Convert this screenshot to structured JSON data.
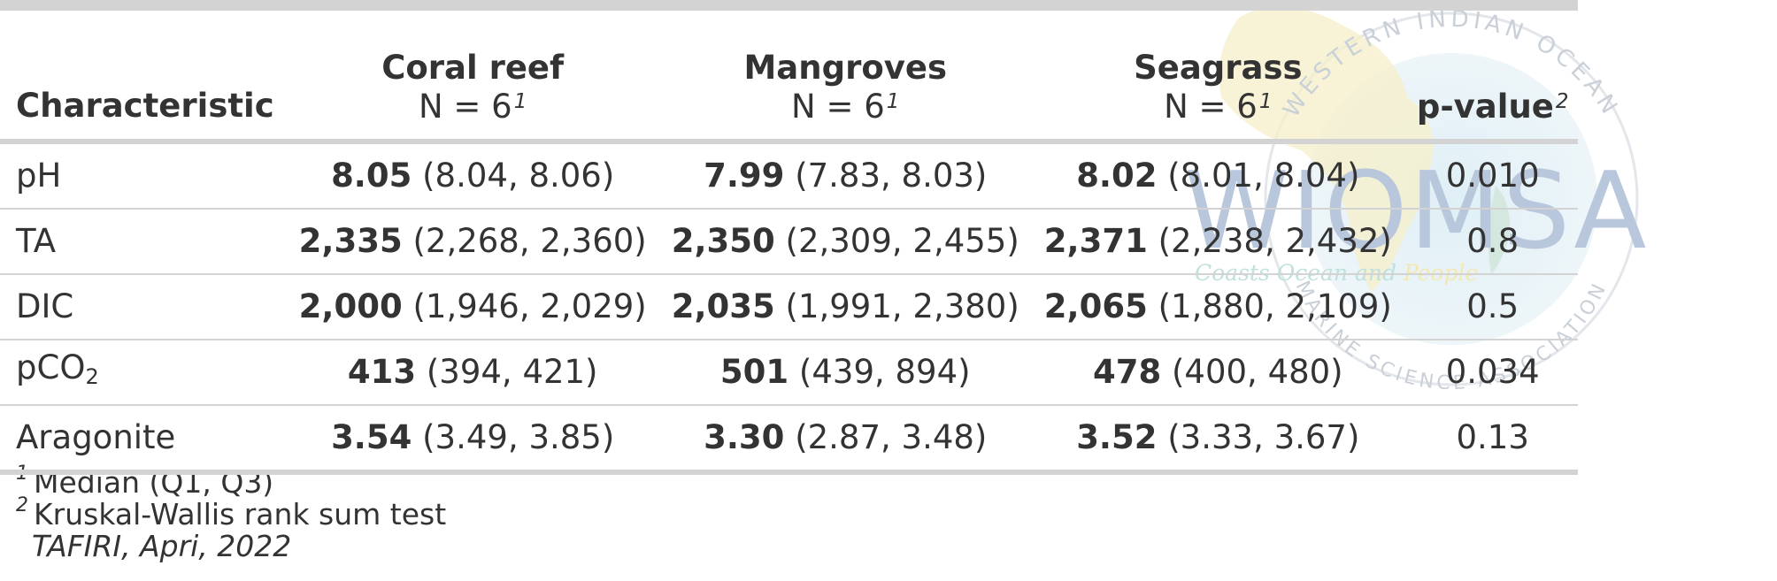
{
  "table": {
    "header": {
      "characteristic": "Characteristic",
      "groups": [
        {
          "name": "Coral reef",
          "n": "N = 6",
          "fn": "1"
        },
        {
          "name": "Mangroves",
          "n": "N = 6",
          "fn": "1"
        },
        {
          "name": "Seagrass",
          "n": "N = 6",
          "fn": "1"
        }
      ],
      "pvalue": "p-value",
      "pvalue_fn": "2"
    },
    "rows": [
      {
        "label": "pH",
        "label_sub": "",
        "cells": [
          {
            "median": "8.05",
            "iqr": "(8.04, 8.06)"
          },
          {
            "median": "7.99",
            "iqr": "(7.83, 8.03)"
          },
          {
            "median": "8.02",
            "iqr": "(8.01, 8.04)"
          }
        ],
        "p": "0.010"
      },
      {
        "label": "TA",
        "label_sub": "",
        "cells": [
          {
            "median": "2,335",
            "iqr": "(2,268, 2,360)"
          },
          {
            "median": "2,350",
            "iqr": "(2,309, 2,455)"
          },
          {
            "median": "2,371",
            "iqr": "(2,238, 2,432)"
          }
        ],
        "p": "0.8"
      },
      {
        "label": "DIC",
        "label_sub": "",
        "cells": [
          {
            "median": "2,000",
            "iqr": "(1,946, 2,029)"
          },
          {
            "median": "2,035",
            "iqr": "(1,991, 2,380)"
          },
          {
            "median": "2,065",
            "iqr": "(1,880, 2,109)"
          }
        ],
        "p": "0.5"
      },
      {
        "label": "pCO",
        "label_sub": "2",
        "cells": [
          {
            "median": "413",
            "iqr": "(394, 421)"
          },
          {
            "median": "501",
            "iqr": "(439, 894)"
          },
          {
            "median": "478",
            "iqr": "(400, 480)"
          }
        ],
        "p": "0.034"
      },
      {
        "label": "Aragonite",
        "label_sub": "",
        "cells": [
          {
            "median": "3.54",
            "iqr": "(3.49, 3.85)"
          },
          {
            "median": "3.30",
            "iqr": "(2.87, 3.48)"
          },
          {
            "median": "3.52",
            "iqr": "(3.33, 3.67)"
          }
        ],
        "p": "0.13"
      }
    ]
  },
  "footnotes": [
    {
      "mark": "1",
      "text": "Median (Q1, Q3)"
    },
    {
      "mark": "2",
      "text": "Kruskal-Wallis rank sum test"
    }
  ],
  "source_note": "TAFIRI, Apri, 2022",
  "watermark": {
    "title": "WIOMSA",
    "arc_top": "WESTERN INDIAN OCEAN",
    "arc_bottom": "MARINE SCIENCE ASSOCIATION",
    "tagline_a": "Coasts Ocean and",
    "tagline_b": "People"
  }
}
